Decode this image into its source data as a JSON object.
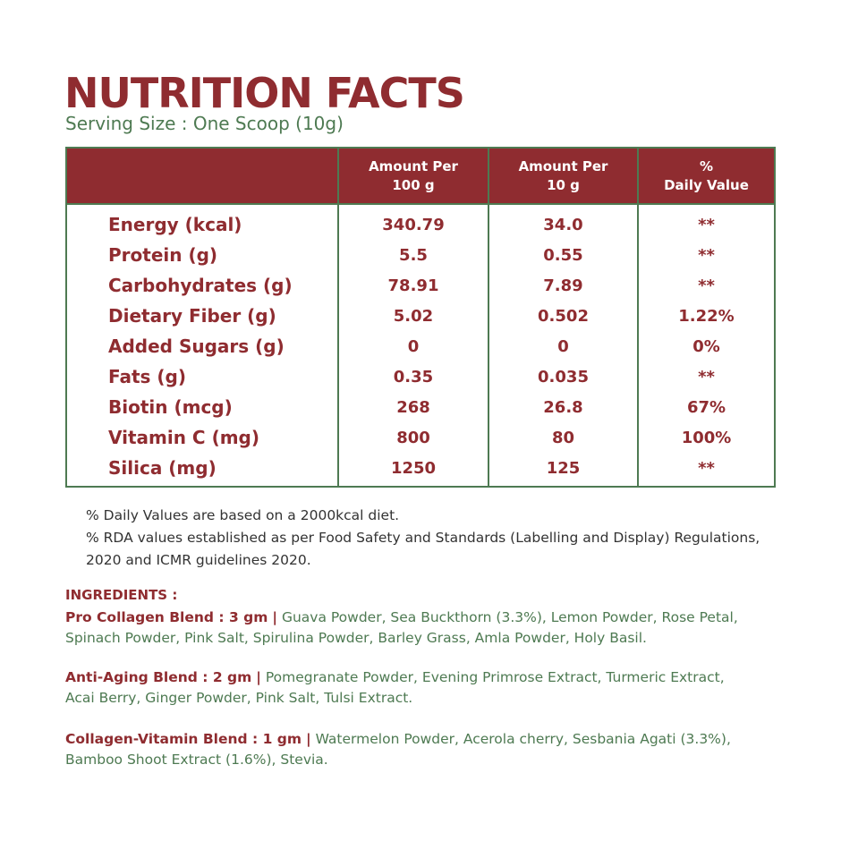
{
  "title": "NUTRITION FACTS",
  "serving": "Serving Size : One Scoop (10g)",
  "table": {
    "headers": [
      {
        "line1": "Amount Per",
        "line2": "100 g"
      },
      {
        "line1": "Amount Per",
        "line2": "10 g"
      },
      {
        "line1": "%",
        "line2": "Daily Value"
      }
    ],
    "rows": [
      {
        "name": "Energy (kcal)",
        "per100": "340.79",
        "per10": "34.0",
        "dv": "**"
      },
      {
        "name": "Protein (g)",
        "per100": "5.5",
        "per10": "0.55",
        "dv": "**"
      },
      {
        "name": "Carbohydrates (g)",
        "per100": "78.91",
        "per10": "7.89",
        "dv": "**"
      },
      {
        "name": "Dietary Fiber (g)",
        "per100": "5.02",
        "per10": "0.502",
        "dv": "1.22%"
      },
      {
        "name": "Added Sugars (g)",
        "per100": "0",
        "per10": "0",
        "dv": "0%"
      },
      {
        "name": "Fats (g)",
        "per100": "0.35",
        "per10": "0.035",
        "dv": "**"
      },
      {
        "name": "Biotin (mcg)",
        "per100": "268",
        "per10": "26.8",
        "dv": "67%"
      },
      {
        "name": "Vitamin C (mg)",
        "per100": "800",
        "per10": "80",
        "dv": "100%"
      },
      {
        "name": "Silica (mg)",
        "per100": "1250",
        "per10": "125",
        "dv": "**"
      }
    ]
  },
  "notes": {
    "line1": "% Daily Values are based on a 2000kcal diet.",
    "line2": "% RDA values established as per Food Safety and Standards (Labelling and Display) Regulations,",
    "line3": "2020 and ICMR guidelines 2020."
  },
  "ingredients": {
    "heading": "INGREDIENTS :",
    "separator": "|",
    "blends": [
      {
        "name": "Pro Collagen Blend : 3 gm",
        "line1": "Guava Powder, Sea Buckthorn (3.3%), Lemon Powder, Rose Petal,",
        "line2": "Spinach Powder, Pink Salt, Spirulina Powder, Barley Grass, Amla Powder, Holy Basil."
      },
      {
        "name": "Anti-Aging Blend : 2 gm",
        "line1": "Pomegranate Powder, Evening Primrose Extract, Turmeric Extract,",
        "line2": "Acai Berry, Ginger Powder, Pink Salt, Tulsi Extract."
      },
      {
        "name": "Collagen-Vitamin Blend : 1 gm",
        "line1": "Watermelon Powder, Acerola cherry, Sesbania Agati (3.3%),",
        "line2": "Bamboo Shoot Extract (1.6%), Stevia."
      }
    ]
  },
  "colors": {
    "primary": "#8f2c30",
    "secondary": "#4e7a52"
  }
}
